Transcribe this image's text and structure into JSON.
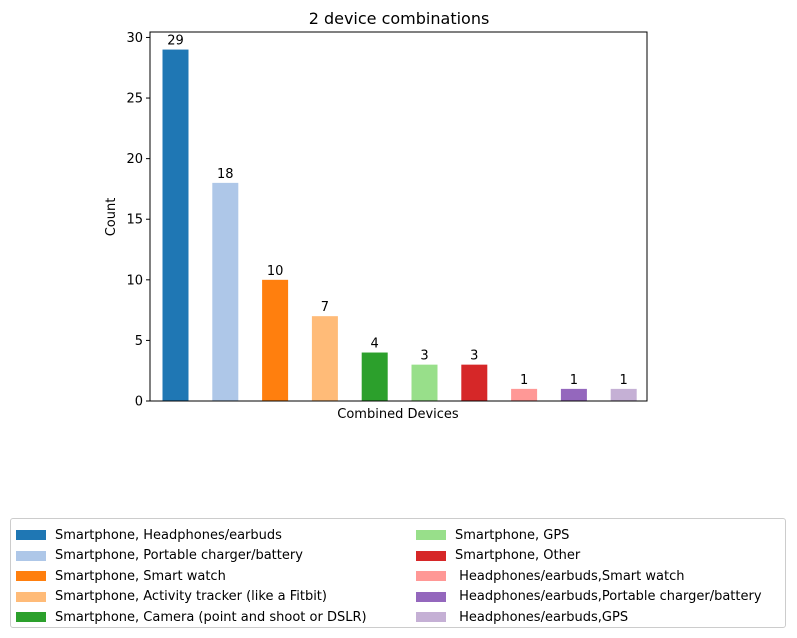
{
  "chart_data": {
    "type": "bar",
    "title": "2 device combinations",
    "xlabel": "Combined Devices",
    "ylabel": "Count",
    "ylim": [
      0,
      30.45
    ],
    "yticks": [
      0,
      5,
      10,
      15,
      20,
      25,
      30
    ],
    "legend_position": "below",
    "categories": [
      "Smartphone, Headphones/earbuds",
      "Smartphone, Portable charger/battery",
      "Smartphone, Smart watch",
      "Smartphone, Activity tracker (like a Fitbit)",
      "Smartphone, Camera (point and shoot or DSLR)",
      "Smartphone, GPS",
      "Smartphone, Other",
      " Headphones/earbuds,Smart watch",
      " Headphones/earbuds,Portable charger/battery",
      " Headphones/earbuds,GPS"
    ],
    "values": [
      29,
      18,
      10,
      7,
      4,
      3,
      3,
      1,
      1,
      1
    ],
    "colors": [
      "#1f77b4",
      "#aec7e8",
      "#ff7f0e",
      "#ffbb78",
      "#2ca02c",
      "#98df8a",
      "#d62728",
      "#ff9896",
      "#9467bd",
      "#c5b0d5"
    ]
  }
}
